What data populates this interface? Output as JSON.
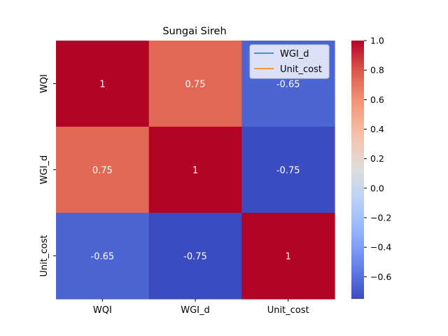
{
  "chart_data": {
    "type": "heatmap",
    "title": "Sungai Sireh",
    "x_labels": [
      "WQI",
      "WGI_d",
      "Unit_cost"
    ],
    "y_labels": [
      "WQI",
      "WGI_d",
      "Unit_cost"
    ],
    "values": [
      [
        1,
        0.75,
        -0.65
      ],
      [
        0.75,
        1,
        -0.75
      ],
      [
        -0.65,
        -0.75,
        1
      ]
    ],
    "annotations": [
      [
        "1",
        "0.75",
        "-0.65"
      ],
      [
        "0.75",
        "1",
        "-0.75"
      ],
      [
        "-0.65",
        "-0.75",
        "1"
      ]
    ],
    "colormap": "coolwarm",
    "vmin": -0.75,
    "vmax": 1.0,
    "colorbar_ticks": [
      1.0,
      0.8,
      0.6,
      0.4,
      0.2,
      0.0,
      -0.2,
      -0.4,
      -0.6
    ],
    "colorbar_tick_labels": [
      "1.0",
      "0.8",
      "0.6",
      "0.4",
      "0.2",
      "0.0",
      "−0.2",
      "−0.4",
      "−0.6"
    ],
    "legend": {
      "placement": "top-right",
      "entries": [
        {
          "label": "WGI_d",
          "color": "#1f77b4"
        },
        {
          "label": "Unit_cost",
          "color": "#ff7f0e"
        }
      ]
    }
  }
}
